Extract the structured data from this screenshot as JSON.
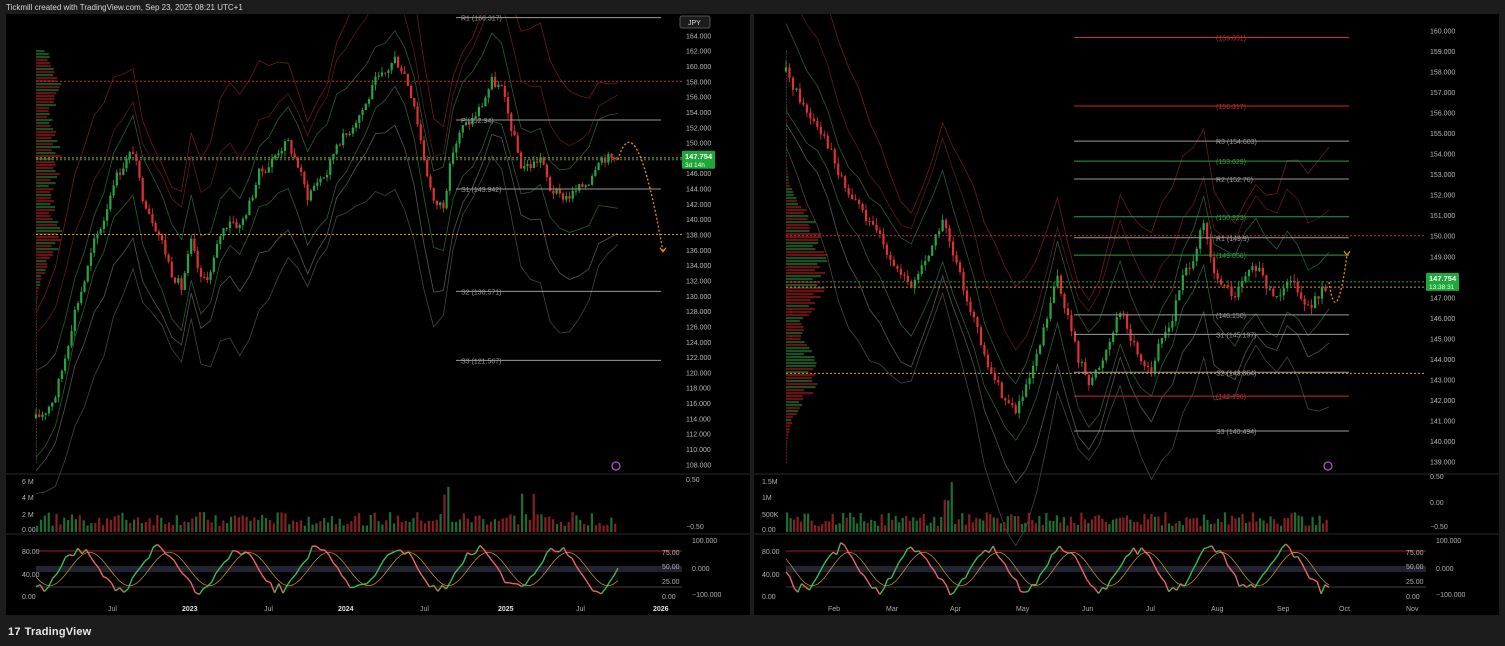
{
  "header": {
    "credit": "Tickmill created with TradingView.com, Sep 23, 2025 08:21 UTC+1"
  },
  "footer": {
    "brand": "TradingView",
    "logo": "17"
  },
  "colors": {
    "bull": "#26a641",
    "bear": "#e03131",
    "pivot_up": "#2e9e3e",
    "pivot_down": "#c92a2a",
    "price_label_bg": "#1fa83a",
    "band_red": "#b02020",
    "band_green": "#2d7a3a",
    "poc": "#d4a017",
    "projection": "#f08c00"
  },
  "chart_data": [
    {
      "type": "candlestick",
      "panel": "weekly",
      "currency_badge": "JPY",
      "price_axis_ticks": [
        "164.000",
        "162.000",
        "160.000",
        "158.000",
        "156.000",
        "154.000",
        "152.000",
        "150.000",
        "148.000",
        "146.000",
        "144.000",
        "142.000",
        "140.000",
        "138.000",
        "136.000",
        "134.000",
        "132.000",
        "130.000",
        "128.000",
        "126.000",
        "124.000",
        "122.000",
        "120.000",
        "118.000",
        "116.000",
        "114.000",
        "112.000",
        "110.000",
        "108.000"
      ],
      "ylim": [
        107,
        166
      ],
      "time_axis": [
        "Jul",
        "2023",
        "Jul",
        "2024",
        "Jul",
        "2025",
        "Jul",
        "2026"
      ],
      "current_price": "147.754",
      "countdown": "3d 14h",
      "pivot_levels": [
        {
          "label": "R1 (166.317)",
          "value": 166.317
        },
        {
          "label": "P (152.94)",
          "value": 152.94
        },
        {
          "label": "S1 (143.942)",
          "value": 143.942
        },
        {
          "label": "S2 (130.571)",
          "value": 130.571
        },
        {
          "label": "S3 (121.567)",
          "value": 121.567
        }
      ],
      "poc_levels": [
        158.0,
        148.0,
        138.0
      ],
      "close_path": [
        114,
        115,
        117,
        122,
        128,
        132,
        137,
        140,
        145,
        147,
        149,
        143,
        140,
        137,
        133,
        131,
        137,
        132,
        133,
        138,
        140,
        139,
        142,
        146,
        147,
        149,
        150,
        147,
        143,
        145,
        146,
        150,
        151,
        153,
        155,
        158,
        159,
        161,
        159,
        155,
        148,
        142,
        142,
        149,
        152,
        153,
        155,
        158,
        157,
        152,
        147,
        147,
        148,
        144,
        143,
        143,
        144,
        145,
        148,
        148,
        147.754
      ],
      "volume_axis": [
        "6 M",
        "4 M",
        "2 M",
        "0.00"
      ],
      "volume_right_axis": [
        "0.50",
        "−0.50"
      ],
      "oscillator_left_axis": [
        "80.00",
        "40.00",
        "0.00"
      ],
      "oscillator_right_axis": [
        "75.00",
        "50.00",
        "25.00",
        "0.00"
      ],
      "oscillator_right_axis2": [
        "100.000",
        "0.000",
        "−100.000"
      ]
    },
    {
      "type": "candlestick",
      "panel": "daily",
      "price_axis_ticks": [
        "160.000",
        "159.000",
        "158.000",
        "157.000",
        "156.000",
        "155.000",
        "154.000",
        "153.000",
        "152.000",
        "151.000",
        "150.000",
        "149.000",
        "148.000",
        "147.000",
        "146.000",
        "145.000",
        "144.000",
        "143.000",
        "142.000",
        "141.000",
        "140.000",
        "139.000"
      ],
      "ylim": [
        138.5,
        160.5
      ],
      "time_axis": [
        "Feb",
        "Mar",
        "Apr",
        "May",
        "Jun",
        "Jul",
        "Aug",
        "Sep",
        "Oct",
        "Nov"
      ],
      "current_price": "147.754",
      "countdown": "13:38:31",
      "pivot_levels": [
        {
          "label": "(159.651)",
          "value": 159.651,
          "tone": "down"
        },
        {
          "label": "(156.317)",
          "value": 156.317,
          "tone": "down"
        },
        {
          "label": "R3 (154.603)",
          "value": 154.603,
          "tone": "grey"
        },
        {
          "label": "(153.629)",
          "value": 153.629,
          "tone": "up"
        },
        {
          "label": "R2 (152.76)",
          "value": 152.76,
          "tone": "grey"
        },
        {
          "label": "(150.923)",
          "value": 150.923,
          "tone": "up"
        },
        {
          "label": "R1 (149.9)",
          "value": 149.9,
          "tone": "grey"
        },
        {
          "label": "(149.056)",
          "value": 149.056,
          "tone": "up"
        },
        {
          "label": "(146.150)",
          "value": 146.15,
          "tone": "grey"
        },
        {
          "label": "S1 (145.197)",
          "value": 145.197,
          "tone": "grey"
        },
        {
          "label": "S2 (143.354)",
          "value": 143.354,
          "tone": "grey"
        },
        {
          "label": "(142.196)",
          "value": 142.196,
          "tone": "down"
        },
        {
          "label": "S3 (140.494)",
          "value": 140.494,
          "tone": "grey"
        }
      ],
      "poc_levels": [
        150.0,
        147.5,
        143.3
      ],
      "close_path": [
        158,
        157,
        156,
        155.5,
        154.5,
        153,
        152,
        151.5,
        150.5,
        150,
        149,
        148,
        147.5,
        148.5,
        149.5,
        150.8,
        149,
        147.5,
        146,
        144,
        143,
        142,
        141.5,
        142.5,
        144,
        146,
        148,
        146,
        144,
        143,
        143.5,
        145,
        146.5,
        145,
        144,
        143.5,
        145,
        146,
        148,
        149,
        150.5,
        148,
        147.5,
        147,
        148,
        148.5,
        147.5,
        147,
        148,
        147.5,
        146.5,
        147,
        147.754
      ],
      "volume_axis": [
        "1.5M",
        "1M",
        "500K",
        "0.00"
      ],
      "volume_right_axis": [
        "0.50",
        "0.00",
        "−0.50"
      ],
      "oscillator_left_axis": [
        "80.00",
        "40.00",
        "0.00"
      ],
      "oscillator_right_axis": [
        "75.00",
        "50.00",
        "25.00",
        "0.00"
      ],
      "oscillator_right_axis2": [
        "100.000",
        "0.000",
        "−100.000"
      ]
    }
  ]
}
